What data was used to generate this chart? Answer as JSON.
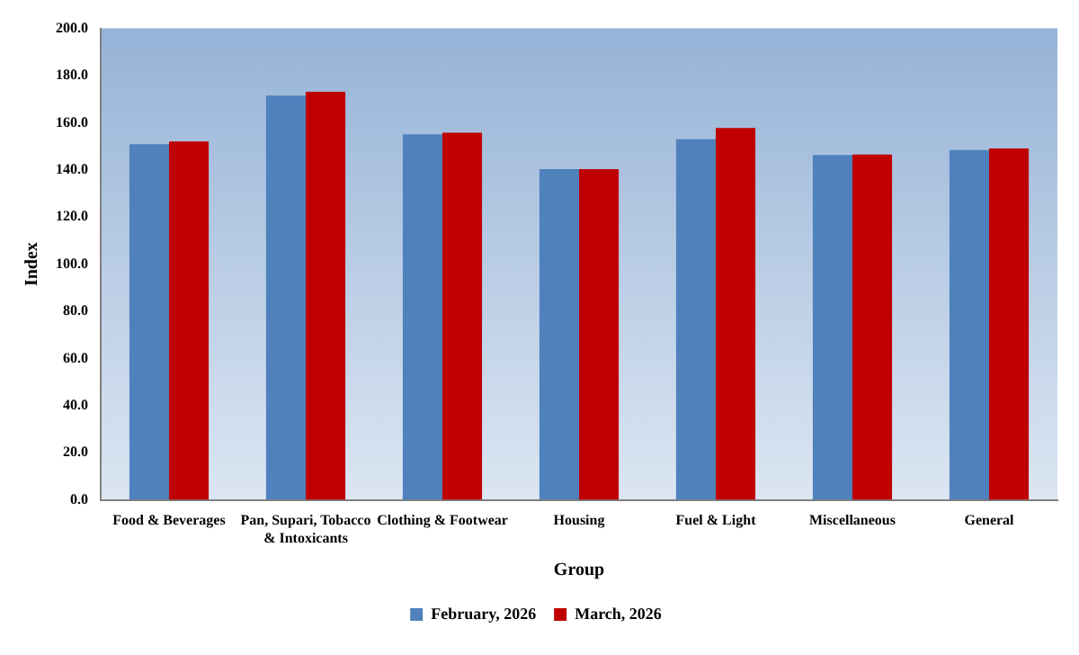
{
  "chart_data": {
    "type": "bar",
    "xlabel": "Group",
    "ylabel": "Index",
    "categories": [
      "Food & Beverages",
      "Pan, Supari, Tobacco & Intoxicants",
      "Clothing & Footwear",
      "Housing",
      "Fuel & Light",
      "Miscellaneous",
      "General"
    ],
    "series": [
      {
        "name": "February, 2026",
        "color": "#4f81bd",
        "values": [
          150.9,
          171.5,
          155.1,
          140.3,
          153.0,
          146.3,
          148.4
        ]
      },
      {
        "name": "March, 2026",
        "color": "#c00000",
        "values": [
          152.0,
          173.1,
          155.8,
          140.3,
          157.8,
          146.5,
          149.1
        ]
      }
    ],
    "ylim": [
      0,
      200
    ],
    "yticks": [
      {
        "value": 0,
        "label": "0.0"
      },
      {
        "value": 20,
        "label": "20.0"
      },
      {
        "value": 40,
        "label": "40.0"
      },
      {
        "value": 60,
        "label": "60.0"
      },
      {
        "value": 80,
        "label": "80.0"
      },
      {
        "value": 100,
        "label": "100.0"
      },
      {
        "value": 120,
        "label": "120.0"
      },
      {
        "value": 140,
        "label": "140.0"
      },
      {
        "value": 160,
        "label": "160.0"
      },
      {
        "value": 180,
        "label": "180.0"
      },
      {
        "value": 200,
        "label": "200.0"
      }
    ],
    "grid": false,
    "legend": "bottom"
  }
}
